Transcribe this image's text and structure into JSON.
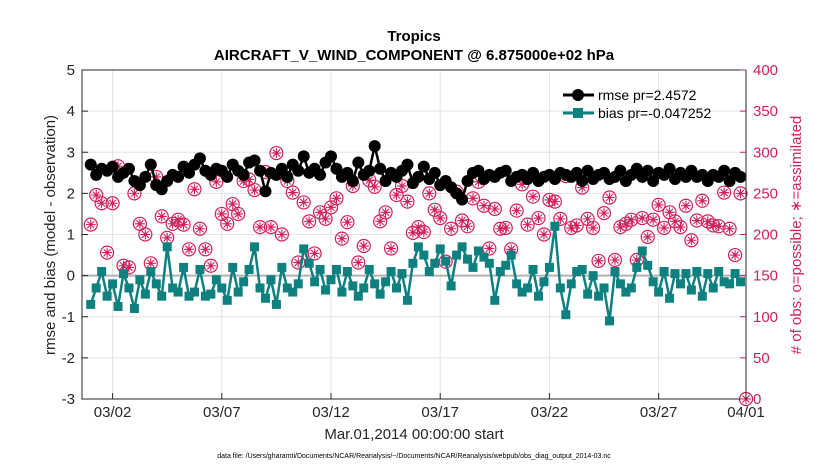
{
  "chart_data": {
    "type": "line",
    "title": "Tropics",
    "subtitle": "AIRCRAFT_V_WIND_COMPONENT @ 6.875000e+02 hPa",
    "xlabel": "Mar.01,2014 00:00:00 start",
    "ylabel": "rmse and bias (model - observation)",
    "ylabel_right": "# of obs: o=possible; ∗=assimilated",
    "xlim": [
      0.6,
      31.0
    ],
    "ylim": [
      -3,
      5
    ],
    "ylim_right": [
      0,
      400
    ],
    "x_tick_values": [
      2,
      7,
      12,
      17,
      22,
      27,
      32
    ],
    "x_tick_labels": [
      "03/02",
      "03/07",
      "03/12",
      "03/17",
      "03/22",
      "03/27",
      "04/01"
    ],
    "y_ticks": [
      -3,
      -2,
      -1,
      0,
      1,
      2,
      3,
      4,
      5
    ],
    "y_ticks_right": [
      0,
      50,
      100,
      150,
      200,
      250,
      300,
      350,
      400
    ],
    "grid": true,
    "zero_line": 0,
    "legend_position": "top-right",
    "footnote": "data file: /Users/gharamti/Documents/NCAR/Reanalysis/~/Documents/NCAR/Reanalysis/webpub/obs_diag_output_2014-03.nc",
    "colors": {
      "rmse": "#000000",
      "bias": "#0f8080",
      "obs_count": "#d11f5a",
      "zero_line": "#b3b3b3"
    },
    "series": [
      {
        "name": "rmse",
        "legend": "rmse pr=2.4572",
        "x": [
          1.0,
          1.25,
          1.5,
          1.75,
          2.0,
          2.25,
          2.5,
          2.75,
          3.0,
          3.25,
          3.5,
          3.75,
          4.0,
          4.25,
          4.5,
          4.75,
          5.0,
          5.25,
          5.5,
          5.75,
          6.0,
          6.25,
          6.5,
          6.75,
          7.0,
          7.25,
          7.5,
          7.75,
          8.0,
          8.25,
          8.5,
          8.75,
          9.0,
          9.25,
          9.5,
          9.75,
          10.0,
          10.25,
          10.5,
          10.75,
          11.0,
          11.25,
          11.5,
          11.75,
          12.0,
          12.25,
          12.5,
          12.75,
          13.0,
          13.25,
          13.5,
          13.75,
          14.0,
          14.25,
          14.5,
          14.75,
          15.0,
          15.25,
          15.5,
          15.75,
          16.0,
          16.25,
          16.5,
          16.75,
          17.0,
          17.25,
          17.5,
          17.75,
          18.0,
          18.25,
          18.5,
          18.75,
          19.0,
          19.25,
          19.5,
          19.75,
          20.0,
          20.25,
          20.5,
          20.75,
          21.0,
          21.25,
          21.5,
          21.75,
          22.0,
          22.25,
          22.5,
          22.75,
          23.0,
          23.25,
          23.5,
          23.75,
          24.0,
          24.25,
          24.5,
          24.75,
          25.0,
          25.25,
          25.5,
          25.75,
          26.0,
          26.25,
          26.5,
          26.75,
          27.0,
          27.25,
          27.5,
          27.75,
          28.0,
          28.25,
          28.5,
          28.75,
          29.0,
          29.25,
          29.5,
          29.75,
          30.0,
          30.25,
          30.5,
          30.75
        ],
        "values": [
          2.7,
          2.45,
          2.6,
          2.55,
          2.65,
          2.4,
          2.5,
          2.6,
          2.3,
          2.2,
          2.4,
          2.7,
          2.2,
          2.1,
          2.3,
          2.45,
          2.4,
          2.65,
          2.5,
          2.7,
          2.85,
          2.55,
          2.45,
          2.6,
          2.55,
          2.4,
          2.7,
          2.55,
          2.45,
          2.75,
          2.8,
          2.55,
          2.05,
          2.5,
          2.45,
          2.6,
          2.4,
          2.7,
          2.55,
          2.9,
          2.5,
          2.6,
          2.45,
          2.75,
          2.9,
          2.6,
          2.4,
          2.5,
          2.3,
          2.75,
          2.45,
          2.55,
          3.15,
          2.6,
          2.3,
          2.5,
          2.4,
          2.55,
          2.7,
          2.25,
          2.4,
          2.65,
          2.35,
          2.5,
          2.2,
          2.3,
          2.15,
          2.0,
          1.85,
          2.3,
          2.5,
          2.55,
          2.35,
          2.45,
          2.4,
          2.5,
          2.55,
          2.3,
          2.4,
          2.45,
          2.35,
          2.5,
          2.3,
          2.4,
          2.45,
          2.35,
          2.5,
          2.45,
          2.4,
          2.5,
          2.3,
          2.55,
          2.35,
          2.45,
          2.5,
          2.35,
          2.4,
          2.55,
          2.3,
          2.45,
          2.6,
          2.4,
          2.55,
          2.3,
          2.5,
          2.45,
          2.6,
          2.35,
          2.5,
          2.4,
          2.55,
          2.4,
          2.45,
          2.3,
          2.45,
          2.4,
          2.55,
          2.3,
          2.5,
          2.4
        ]
      },
      {
        "name": "bias",
        "legend": "bias pr=-0.047252",
        "x": [
          1.0,
          1.25,
          1.5,
          1.75,
          2.0,
          2.25,
          2.5,
          2.75,
          3.0,
          3.25,
          3.5,
          3.75,
          4.0,
          4.25,
          4.5,
          4.75,
          5.0,
          5.25,
          5.5,
          5.75,
          6.0,
          6.25,
          6.5,
          6.75,
          7.0,
          7.25,
          7.5,
          7.75,
          8.0,
          8.25,
          8.5,
          8.75,
          9.0,
          9.25,
          9.5,
          9.75,
          10.0,
          10.25,
          10.5,
          10.75,
          11.0,
          11.25,
          11.5,
          11.75,
          12.0,
          12.25,
          12.5,
          12.75,
          13.0,
          13.25,
          13.5,
          13.75,
          14.0,
          14.25,
          14.5,
          14.75,
          15.0,
          15.25,
          15.5,
          15.75,
          16.0,
          16.25,
          16.5,
          16.75,
          17.0,
          17.25,
          17.5,
          17.75,
          18.0,
          18.25,
          18.5,
          18.75,
          19.0,
          19.25,
          19.5,
          19.75,
          20.0,
          20.25,
          20.5,
          20.75,
          21.0,
          21.25,
          21.5,
          21.75,
          22.0,
          22.25,
          22.5,
          22.75,
          23.0,
          23.25,
          23.5,
          23.75,
          24.0,
          24.25,
          24.5,
          24.75,
          25.0,
          25.25,
          25.5,
          25.75,
          26.0,
          26.25,
          26.5,
          26.75,
          27.0,
          27.25,
          27.5,
          27.75,
          28.0,
          28.25,
          28.5,
          28.75,
          29.0,
          29.25,
          29.5,
          29.75,
          30.0,
          30.25,
          30.5,
          30.75
        ],
        "values": [
          -0.7,
          -0.3,
          0.1,
          -0.5,
          -0.2,
          -0.75,
          0.05,
          -0.3,
          -0.8,
          -0.1,
          -0.45,
          0.1,
          -0.2,
          -0.5,
          0.7,
          -0.3,
          -0.4,
          0.2,
          -0.5,
          -0.4,
          0.15,
          -0.5,
          -0.45,
          -0.1,
          -0.3,
          -0.6,
          0.2,
          -0.4,
          -0.15,
          0.15,
          0.7,
          -0.3,
          -0.55,
          -0.1,
          -0.7,
          0.2,
          -0.3,
          -0.4,
          -0.2,
          0.65,
          0.3,
          -0.15,
          0.15,
          -0.35,
          -0.1,
          0.15,
          -0.4,
          0.1,
          -0.25,
          -0.5,
          -0.3,
          0.15,
          -0.2,
          -0.45,
          -0.15,
          0.1,
          -0.3,
          0.05,
          -0.6,
          0.3,
          0.7,
          0.5,
          0.1,
          0.3,
          0.65,
          0.35,
          -0.25,
          0.5,
          0.7,
          0.4,
          0.2,
          0.6,
          0.45,
          0.3,
          -0.6,
          0.1,
          0.25,
          0.5,
          -0.2,
          -0.4,
          -0.3,
          0.15,
          -0.5,
          -0.15,
          0.2,
          1.2,
          -0.3,
          -0.95,
          -0.2,
          0.1,
          0.15,
          -0.45,
          0.0,
          -0.5,
          -0.3,
          -1.1,
          0.1,
          -0.2,
          -0.4,
          -0.3,
          0.2,
          0.6,
          0.25,
          -0.15,
          -0.4,
          0.1,
          -0.55,
          0.05,
          -0.2,
          0.05,
          -0.35,
          0.1,
          -0.5,
          0.05,
          -0.3,
          0.1,
          -0.15,
          -0.2,
          0.05,
          -0.15
        ]
      },
      {
        "name": "possible",
        "axis": "right",
        "x": [
          1.0,
          1.25,
          1.5,
          1.75,
          2.0,
          2.25,
          2.5,
          2.75,
          3.0,
          3.25,
          3.5,
          3.75,
          4.0,
          4.25,
          4.5,
          4.75,
          5.0,
          5.25,
          5.5,
          5.75,
          6.0,
          6.25,
          6.5,
          6.75,
          7.0,
          7.25,
          7.5,
          7.75,
          8.0,
          8.25,
          8.5,
          8.75,
          9.0,
          9.25,
          9.5,
          9.75,
          10.0,
          10.25,
          10.5,
          10.75,
          11.0,
          11.25,
          11.5,
          11.75,
          12.0,
          12.25,
          12.5,
          12.75,
          13.0,
          13.25,
          13.5,
          13.75,
          14.0,
          14.25,
          14.5,
          14.75,
          15.0,
          15.25,
          15.5,
          15.75,
          16.0,
          16.25,
          16.5,
          16.75,
          17.0,
          17.25,
          17.5,
          17.75,
          18.0,
          18.25,
          18.5,
          18.75,
          19.0,
          19.25,
          19.5,
          19.75,
          20.0,
          20.25,
          20.5,
          20.75,
          21.0,
          21.25,
          21.5,
          21.75,
          22.0,
          22.25,
          22.5,
          22.75,
          23.0,
          23.25,
          23.5,
          23.75,
          24.0,
          24.25,
          24.5,
          24.75,
          25.0,
          25.25,
          25.5,
          25.75,
          26.0,
          26.25,
          26.5,
          26.75,
          27.0,
          27.25,
          27.5,
          27.75,
          28.0,
          28.25,
          28.5,
          28.75,
          29.0,
          29.25,
          29.5,
          29.75,
          30.0,
          30.25,
          30.5,
          30.75,
          31.0
        ],
        "values": [
          212,
          248,
          238,
          178,
          238,
          283,
          162,
          160,
          250,
          213,
          200,
          165,
          270,
          222,
          196,
          213,
          218,
          212,
          182,
          255,
          207,
          182,
          162,
          264,
          225,
          213,
          237,
          225,
          265,
          267,
          254,
          209,
          276,
          209,
          299,
          200,
          265,
          251,
          166,
          239,
          216,
          177,
          227,
          219,
          233,
          244,
          195,
          215,
          259,
          166,
          186,
          266,
          258,
          216,
          227,
          183,
          248,
          259,
          240,
          202,
          209,
          203,
          250,
          230,
          220,
          167,
          207,
          252,
          217,
          210,
          244,
          264,
          235,
          183,
          231,
          207,
          208,
          182,
          229,
          261,
          212,
          246,
          220,
          200,
          242,
          240,
          219,
          271,
          208,
          211,
          257,
          219,
          208,
          168,
          226,
          245,
          169,
          209,
          213,
          218,
          169,
          220,
          197,
          218,
          236,
          208,
          227,
          216,
          209,
          235,
          193,
          217,
          241,
          216,
          211,
          210,
          251,
          207,
          175,
          250,
          0
        ]
      },
      {
        "name": "assimilated",
        "axis": "right",
        "x": [
          1.0,
          1.25,
          1.5,
          1.75,
          2.0,
          2.25,
          2.5,
          2.75,
          3.0,
          3.25,
          3.5,
          3.75,
          4.0,
          4.25,
          4.5,
          4.75,
          5.0,
          5.25,
          5.5,
          5.75,
          6.0,
          6.25,
          6.5,
          6.75,
          7.0,
          7.25,
          7.5,
          7.75,
          8.0,
          8.25,
          8.5,
          8.75,
          9.0,
          9.25,
          9.5,
          9.75,
          10.0,
          10.25,
          10.5,
          10.75,
          11.0,
          11.25,
          11.5,
          11.75,
          12.0,
          12.25,
          12.5,
          12.75,
          13.0,
          13.25,
          13.5,
          13.75,
          14.0,
          14.25,
          14.5,
          14.75,
          15.0,
          15.25,
          15.5,
          15.75,
          16.0,
          16.25,
          16.5,
          16.75,
          17.0,
          17.25,
          17.5,
          17.75,
          18.0,
          18.25,
          18.5,
          18.75,
          19.0,
          19.25,
          19.5,
          19.75,
          20.0,
          20.25,
          20.5,
          20.75,
          21.0,
          21.25,
          21.5,
          21.75,
          22.0,
          22.25,
          22.5,
          22.75,
          23.0,
          23.25,
          23.5,
          23.75,
          24.0,
          24.25,
          24.5,
          24.75,
          25.0,
          25.25,
          25.5,
          25.75,
          26.0,
          26.25,
          26.5,
          26.75,
          27.0,
          27.25,
          27.5,
          27.75,
          28.0,
          28.25,
          28.5,
          28.75,
          29.0,
          29.25,
          29.5,
          29.75,
          30.0,
          30.25,
          30.5,
          30.75,
          31.0
        ],
        "values": [
          212,
          248,
          238,
          178,
          238,
          283,
          162,
          160,
          250,
          213,
          200,
          165,
          270,
          222,
          196,
          213,
          218,
          212,
          182,
          255,
          207,
          182,
          162,
          264,
          225,
          213,
          237,
          225,
          265,
          267,
          254,
          209,
          276,
          209,
          299,
          200,
          265,
          251,
          166,
          239,
          216,
          177,
          227,
          219,
          233,
          244,
          195,
          215,
          259,
          166,
          186,
          266,
          258,
          216,
          227,
          183,
          248,
          259,
          240,
          202,
          209,
          203,
          250,
          230,
          220,
          167,
          207,
          252,
          217,
          210,
          244,
          264,
          235,
          183,
          231,
          207,
          208,
          182,
          229,
          261,
          212,
          246,
          220,
          200,
          242,
          240,
          219,
          271,
          208,
          211,
          257,
          219,
          208,
          168,
          226,
          245,
          169,
          209,
          213,
          218,
          169,
          220,
          197,
          218,
          236,
          208,
          227,
          216,
          209,
          235,
          193,
          217,
          241,
          216,
          211,
          210,
          251,
          207,
          175,
          250,
          0
        ]
      }
    ]
  }
}
